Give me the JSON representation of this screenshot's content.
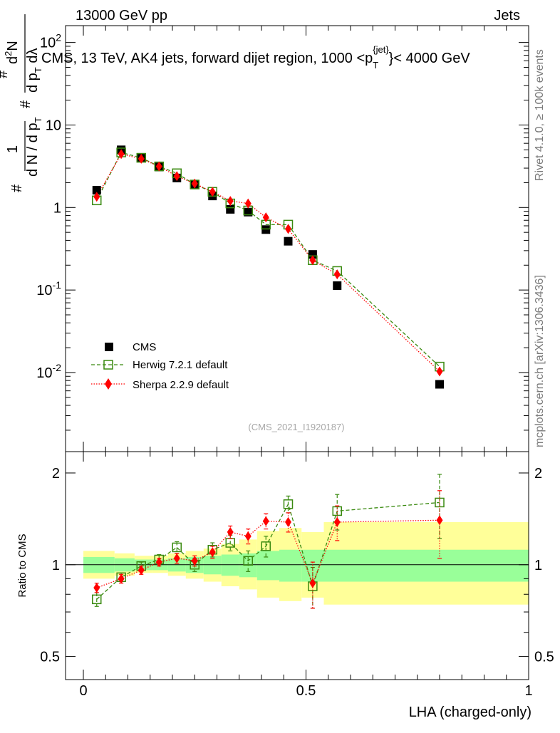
{
  "header": {
    "left": "13000 GeV pp",
    "right": "Jets"
  },
  "side_labels": {
    "rivet": "Rivet 4.1.0, ≥ 100k events",
    "mcplots": "mcplots.cern.ch [arXiv:1306.3436]"
  },
  "colors": {
    "cms": "#000000",
    "herwig": "#3a8a10",
    "sherpa": "#ff0000",
    "band_inner": "#99ff99",
    "band_outer": "#ffff99"
  },
  "chart_data": [
    {
      "type": "scatter",
      "panel": "main",
      "title": "CMS, 13 TeV, AK4 jets, forward dijet region, 1000 <p_T^{jet}< 4000 GeV",
      "title_parts": {
        "main": "CMS, 13 TeV, AK4 jets, forward dijet region, 1000 <p",
        "sub": "T",
        "sup": "{jet}",
        "tail": "}< 4000 GeV"
      },
      "ylabel_parts": {
        "hash": "#",
        "one": "1",
        "dN": "d N / d p",
        "dN_sub": "T",
        "num": "d",
        "num_sup": "2",
        "numN": "N",
        "den": "d p",
        "den_sub": "T",
        "den_tail": " d",
        "lambda": "λ"
      },
      "xlabel": "",
      "yscale": "log",
      "ylim": [
        0.0011,
        160
      ],
      "xlim": [
        -0.04,
        1.0
      ],
      "ytick_labels": [
        "10^{-2}",
        "10^{-1}",
        "1",
        "10",
        "10^{2}"
      ],
      "ytick_values": [
        0.01,
        0.1,
        1,
        10,
        100
      ],
      "watermark": "(CMS_2021_I1920187)",
      "legend_position": "bottom-left",
      "series": [
        {
          "name": "CMS",
          "marker": "square-filled",
          "x": [
            0.03,
            0.085,
            0.13,
            0.17,
            0.21,
            0.25,
            0.29,
            0.33,
            0.37,
            0.41,
            0.46,
            0.515,
            0.57,
            0.8
          ],
          "y": [
            1.62,
            5.0,
            4.05,
            3.1,
            2.28,
            1.9,
            1.38,
            0.95,
            0.88,
            0.54,
            0.39,
            0.27,
            0.113,
            0.0072
          ]
        },
        {
          "name": "Herwig 7.2.1 default",
          "marker": "square-open",
          "line": "dashed",
          "x": [
            0.03,
            0.085,
            0.13,
            0.17,
            0.21,
            0.25,
            0.29,
            0.33,
            0.37,
            0.41,
            0.46,
            0.515,
            0.57,
            0.8
          ],
          "y": [
            1.22,
            4.65,
            4.0,
            3.15,
            2.6,
            1.9,
            1.55,
            1.12,
            0.92,
            0.62,
            0.62,
            0.23,
            0.17,
            0.0118
          ]
        },
        {
          "name": "Sherpa 2.2.9 default",
          "marker": "diamond-filled",
          "line": "dotted",
          "x": [
            0.03,
            0.085,
            0.13,
            0.17,
            0.21,
            0.25,
            0.29,
            0.33,
            0.37,
            0.41,
            0.46,
            0.515,
            0.57,
            0.8
          ],
          "y": [
            1.35,
            4.45,
            3.9,
            3.15,
            2.4,
            1.95,
            1.55,
            1.2,
            1.12,
            0.76,
            0.55,
            0.23,
            0.155,
            0.0103
          ]
        }
      ]
    },
    {
      "type": "scatter",
      "panel": "ratio",
      "xlabel": "LHA (charged-only)",
      "ylabel": "Ratio to CMS",
      "yscale": "log",
      "ylim": [
        0.42,
        2.35
      ],
      "xlim": [
        -0.04,
        1.0
      ],
      "ytick_labels": [
        "0.5",
        "1",
        "2"
      ],
      "ytick_values": [
        0.5,
        1,
        2
      ],
      "xtick_labels": [
        "0",
        "0.5",
        "1"
      ],
      "xtick_values": [
        0,
        0.5,
        1
      ],
      "band_edges": [
        0.0,
        0.07,
        0.115,
        0.155,
        0.19,
        0.23,
        0.27,
        0.31,
        0.35,
        0.39,
        0.44,
        0.49,
        0.54,
        0.6,
        1.0
      ],
      "band_inner_lo": [
        0.94,
        0.95,
        0.96,
        0.96,
        0.95,
        0.94,
        0.93,
        0.92,
        0.91,
        0.89,
        0.88,
        0.88,
        0.88,
        0.88
      ],
      "band_inner_hi": [
        1.06,
        1.05,
        1.04,
        1.04,
        1.05,
        1.06,
        1.07,
        1.08,
        1.09,
        1.11,
        1.12,
        1.12,
        1.12,
        1.12
      ],
      "band_outer_lo": [
        0.9,
        0.92,
        0.94,
        0.94,
        0.92,
        0.9,
        0.88,
        0.85,
        0.83,
        0.78,
        0.76,
        0.78,
        0.74,
        0.74
      ],
      "band_outer_hi": [
        1.11,
        1.09,
        1.07,
        1.07,
        1.09,
        1.11,
        1.13,
        1.17,
        1.21,
        1.29,
        1.32,
        1.28,
        1.38,
        1.38
      ],
      "series": [
        {
          "name": "Herwig 7.2.1 default",
          "x": [
            0.03,
            0.085,
            0.13,
            0.17,
            0.21,
            0.25,
            0.29,
            0.33,
            0.37,
            0.41,
            0.46,
            0.515,
            0.57,
            0.8
          ],
          "y": [
            0.77,
            0.91,
            0.99,
            1.04,
            1.14,
            1.0,
            1.12,
            1.18,
            1.03,
            1.15,
            1.58,
            0.85,
            1.5,
            1.6
          ],
          "err": [
            0.04,
            0.03,
            0.03,
            0.04,
            0.05,
            0.05,
            0.06,
            0.07,
            0.08,
            0.09,
            0.1,
            0.13,
            0.2,
            0.38
          ]
        },
        {
          "name": "Sherpa 2.2.9 default",
          "x": [
            0.03,
            0.085,
            0.13,
            0.17,
            0.21,
            0.25,
            0.29,
            0.33,
            0.37,
            0.41,
            0.46,
            0.515,
            0.57,
            0.8
          ],
          "y": [
            0.84,
            0.9,
            0.96,
            1.02,
            1.05,
            1.03,
            1.1,
            1.28,
            1.24,
            1.39,
            1.38,
            0.87,
            1.38,
            1.4
          ],
          "err": [
            0.03,
            0.03,
            0.03,
            0.03,
            0.04,
            0.04,
            0.05,
            0.06,
            0.07,
            0.08,
            0.1,
            0.15,
            0.18,
            0.35
          ]
        }
      ]
    }
  ]
}
